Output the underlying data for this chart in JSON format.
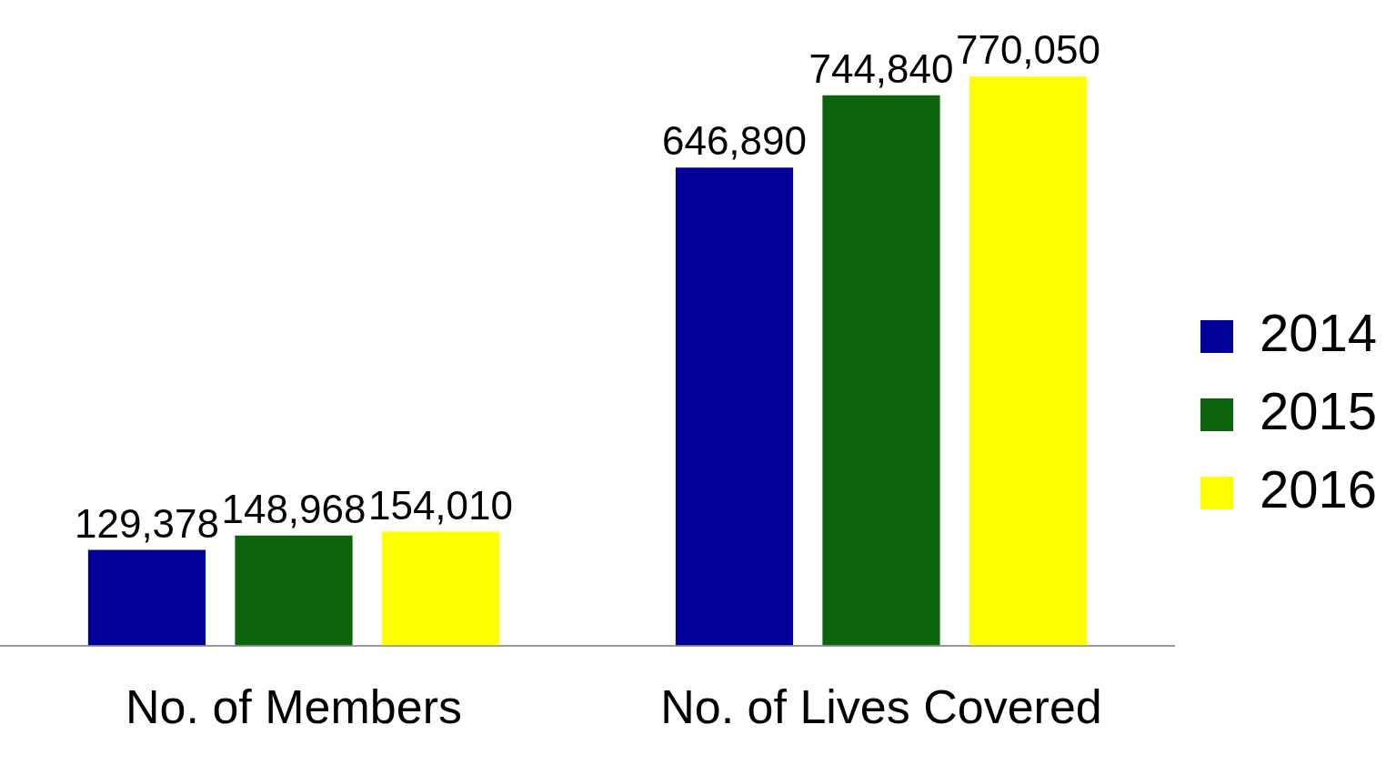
{
  "chart_data": {
    "type": "bar",
    "categories": [
      "No. of Members",
      "No. of Lives Covered"
    ],
    "series": [
      {
        "name": "2014",
        "color": "#000099",
        "values": [
          129378,
          646890
        ],
        "value_labels": [
          "129,378",
          "646,890"
        ]
      },
      {
        "name": "2015",
        "color": "#0c640c",
        "values": [
          148968,
          744840
        ],
        "value_labels": [
          "148,968",
          "744,840"
        ]
      },
      {
        "name": "2016",
        "color": "#ffff00",
        "values": [
          154010,
          770050
        ],
        "value_labels": [
          "154,010",
          "770,050"
        ]
      }
    ],
    "legend": "right",
    "grid": false
  }
}
